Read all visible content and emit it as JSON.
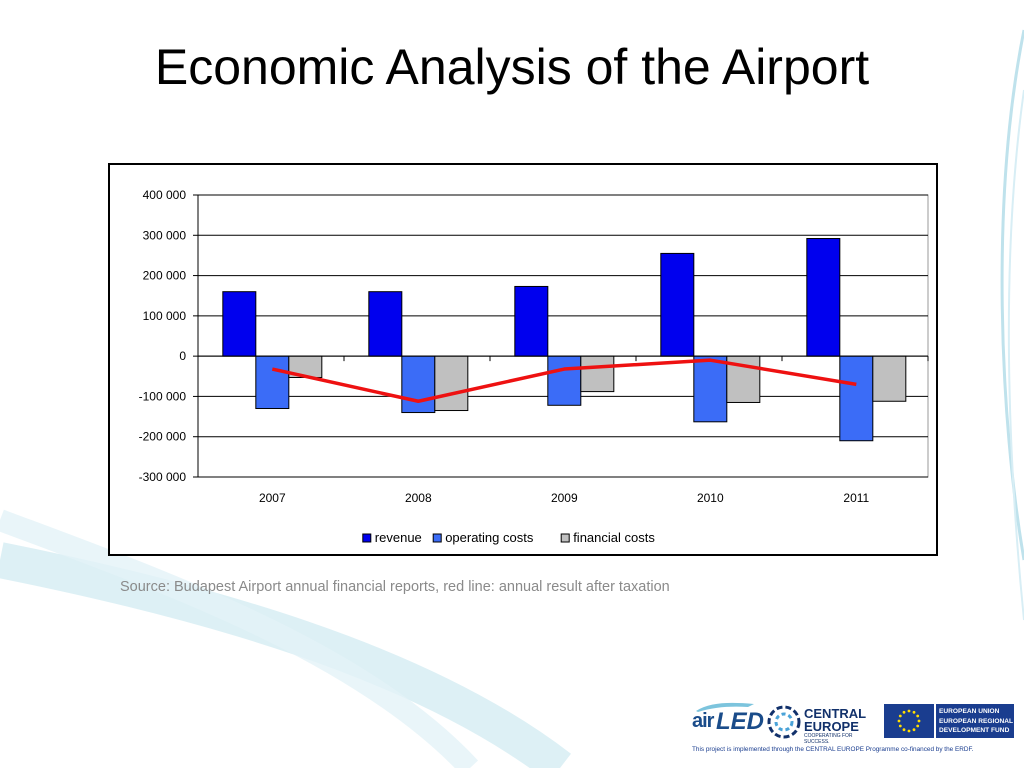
{
  "slide": {
    "title": "Economic Analysis of the Airport",
    "source": "Source: Budapest Airport annual financial reports, red line: annual result after taxation"
  },
  "footer": {
    "airled_air": "air",
    "airled_led": "LED",
    "central_line1": "CENTRAL",
    "central_line2": "EUROPE",
    "central_tagline": "COOPERATING FOR SUCCESS.",
    "eu_line1": "EUROPEAN UNION",
    "eu_line2": "EUROPEAN REGIONAL",
    "eu_line3": "DEVELOPMENT FUND",
    "note": "This project is implemented through the CENTRAL EUROPE Programme co-financed by the ERDF."
  },
  "colors": {
    "revenue": "#0000ee",
    "operating_costs": "#3b6cf7",
    "financial_costs": "#c0c0c0",
    "result_line": "#ee1111",
    "swoosh": "#9fd3e3"
  },
  "chart_data": {
    "type": "bar",
    "title": "",
    "xlabel": "",
    "ylabel": "",
    "categories": [
      "2007",
      "2008",
      "2009",
      "2010",
      "2011"
    ],
    "series": [
      {
        "name": "revenue",
        "values": [
          160000,
          160000,
          173000,
          255000,
          292000
        ]
      },
      {
        "name": "operating costs",
        "values": [
          -130000,
          -140000,
          -122000,
          -163000,
          -210000
        ]
      },
      {
        "name": "financial costs",
        "values": [
          -53000,
          -135000,
          -88000,
          -115000,
          -112000
        ]
      }
    ],
    "line_series": {
      "values": [
        -32000,
        -112000,
        -32000,
        -10000,
        -70000
      ]
    },
    "ylim": [
      -300000,
      400000
    ],
    "yticks": [
      {
        "value": 400000,
        "label": "400 000"
      },
      {
        "value": 300000,
        "label": "300 000"
      },
      {
        "value": 200000,
        "label": "200 000"
      },
      {
        "value": 100000,
        "label": "100 000"
      },
      {
        "value": 0,
        "label": "0"
      },
      {
        "value": -100000,
        "label": "-100 000"
      },
      {
        "value": -200000,
        "label": "-200 000"
      },
      {
        "value": -300000,
        "label": "-300 000"
      }
    ],
    "grid": true,
    "legend": "bottom-center"
  }
}
